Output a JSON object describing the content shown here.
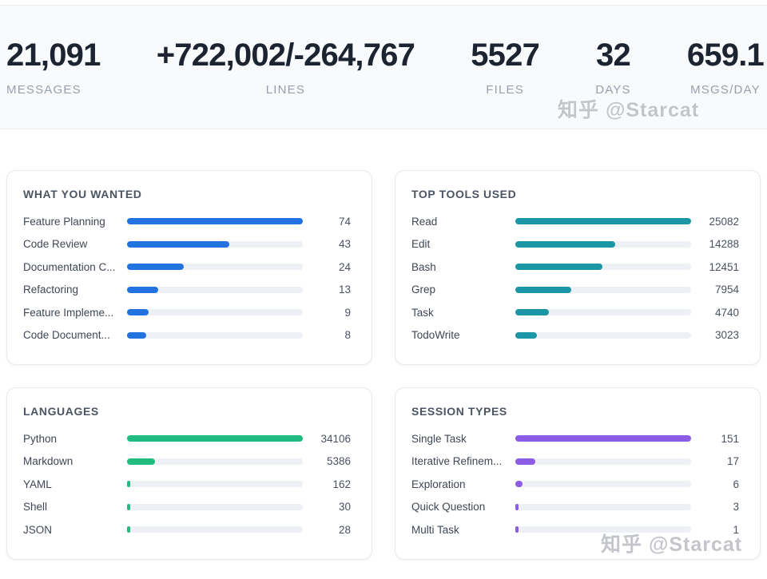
{
  "stats": [
    {
      "value": "21,091",
      "label": "MESSAGES"
    },
    {
      "value": "+722,002/-264,767",
      "label": "LINES"
    },
    {
      "value": "5527",
      "label": "FILES"
    },
    {
      "value": "32",
      "label": "DAYS"
    },
    {
      "value": "659.1",
      "label": "MSGS/DAY"
    }
  ],
  "watermark": {
    "text": "知乎 @Starcat"
  },
  "chart_data": [
    {
      "type": "bar",
      "orientation": "horizontal",
      "title": "WHAT YOU WANTED",
      "categories": [
        "Feature Planning",
        "Code Review",
        "Documentation C...",
        "Refactoring",
        "Feature Impleme...",
        "Code Document..."
      ],
      "values": [
        74,
        43,
        24,
        13,
        9,
        8
      ],
      "xlim": [
        0,
        74
      ],
      "bar_color": "#2273e0",
      "track_color": "#edf0f4",
      "grid": false,
      "legend": false
    },
    {
      "type": "bar",
      "orientation": "horizontal",
      "title": "TOP TOOLS USED",
      "categories": [
        "Read",
        "Edit",
        "Bash",
        "Grep",
        "Task",
        "TodoWrite"
      ],
      "values": [
        25082,
        14288,
        12451,
        7954,
        4740,
        3023
      ],
      "xlim": [
        0,
        25082
      ],
      "bar_color": "#1b96a6",
      "track_color": "#edf0f4",
      "grid": false,
      "legend": false
    },
    {
      "type": "bar",
      "orientation": "horizontal",
      "title": "LANGUAGES",
      "categories": [
        "Python",
        "Markdown",
        "YAML",
        "Shell",
        "JSON"
      ],
      "values": [
        34106,
        5386,
        162,
        30,
        28
      ],
      "xlim": [
        0,
        34106
      ],
      "bar_color": "#22bb7f",
      "track_color": "#edf0f4",
      "grid": false,
      "legend": false
    },
    {
      "type": "bar",
      "orientation": "horizontal",
      "title": "SESSION TYPES",
      "categories": [
        "Single Task",
        "Iterative Refinem...",
        "Exploration",
        "Quick Question",
        "Multi Task"
      ],
      "values": [
        151,
        17,
        6,
        3,
        1
      ],
      "xlim": [
        0,
        151
      ],
      "bar_color": "#8d5ce6",
      "track_color": "#edf0f4",
      "grid": false,
      "legend": false
    }
  ]
}
